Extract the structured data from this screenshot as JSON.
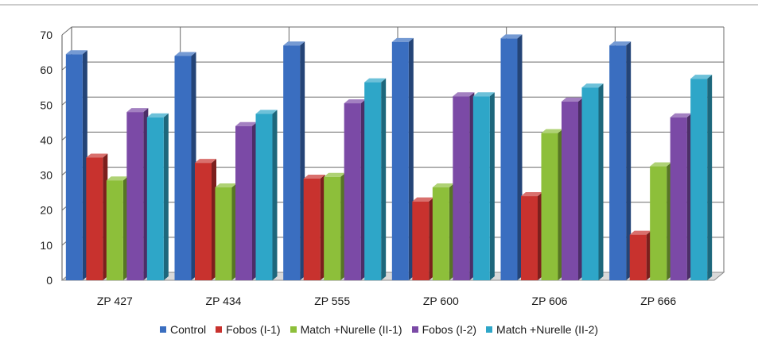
{
  "chart_data": {
    "type": "bar",
    "title": "",
    "xlabel": "",
    "ylabel": "",
    "ylim": [
      0,
      70
    ],
    "yticks": [
      0,
      10,
      20,
      30,
      40,
      50,
      60,
      70
    ],
    "grid": true,
    "legend_position": "bottom",
    "categories": [
      "ZP 427",
      "ZP 434",
      "ZP 555",
      "ZP 600",
      "ZP 606",
      "ZP 666"
    ],
    "series": [
      {
        "name": "Control",
        "color": "#3a6ec0",
        "values": [
          64.5,
          64,
          67,
          68,
          69,
          67
        ]
      },
      {
        "name": "Fobos (I-1)",
        "color": "#c8322e",
        "values": [
          35,
          33.5,
          29,
          22.5,
          24,
          13
        ]
      },
      {
        "name": "Match +Nurelle (II-1)",
        "color": "#8dbf3a",
        "values": [
          28.5,
          26.5,
          29.5,
          26.5,
          42,
          32.5
        ]
      },
      {
        "name": "Fobos (I-2)",
        "color": "#7b4aa6",
        "values": [
          48,
          44,
          50.5,
          52.5,
          51,
          46.5
        ]
      },
      {
        "name": "Match +Nurelle (II-2)",
        "color": "#2ea6c8",
        "values": [
          46.5,
          47.5,
          56.5,
          52.5,
          55,
          57.5
        ]
      }
    ]
  }
}
